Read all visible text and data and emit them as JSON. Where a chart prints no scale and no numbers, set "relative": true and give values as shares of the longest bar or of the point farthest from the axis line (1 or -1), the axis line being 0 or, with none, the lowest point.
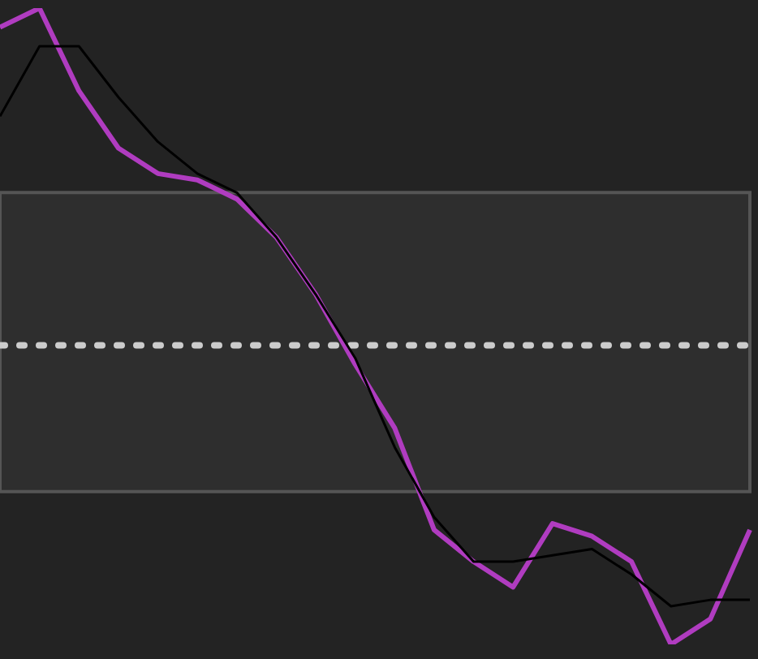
{
  "chart_data": {
    "type": "line",
    "relative": true,
    "categories": [
      null,
      null,
      null,
      null,
      null,
      null,
      null,
      null,
      null,
      null,
      null,
      null,
      null,
      null,
      null,
      null,
      null,
      null,
      null,
      null
    ],
    "series": [
      {
        "color": "#b03cc0",
        "values": [
          0.97,
          1.0,
          0.87,
          0.78,
          0.74,
          0.73,
          0.7,
          0.64,
          0.55,
          0.44,
          0.34,
          0.18,
          0.13,
          0.09,
          0.19,
          0.17,
          0.13,
          0,
          0.04,
          0.18
        ]
      },
      {
        "color": "#000000",
        "values": [
          0.83,
          0.94,
          0.94,
          0.86,
          0.79,
          0.74,
          0.71,
          0.64,
          0.55,
          0.45,
          0.31,
          0.2,
          0.13,
          0.13,
          0.14,
          0.15,
          0.11,
          0.06,
          0.07,
          0.07
        ]
      }
    ],
    "bands": [
      {
        "axis": "y",
        "from": 0.24,
        "to": 0.71,
        "color": "#2e2e2e"
      }
    ],
    "ref_lines": [
      {
        "axis": "y",
        "value": 0.47,
        "color": "#cccccc",
        "line_style": "dotted"
      }
    ],
    "marker": "none",
    "line_style": "solid"
  }
}
